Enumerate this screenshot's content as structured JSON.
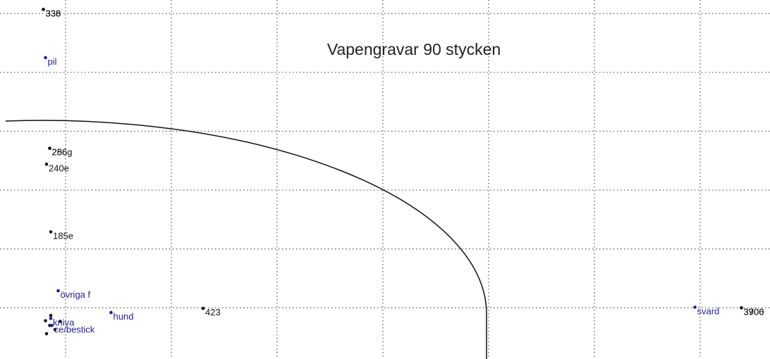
{
  "chart_data": {
    "type": "scatter",
    "title": "Vapengravar 90 stycken",
    "xlim": [
      -0.62,
      6.66
    ],
    "ylim": [
      -0.87,
      5.23
    ],
    "xticks": [
      0,
      1,
      2,
      3,
      4,
      5,
      6
    ],
    "yticks": [
      0,
      1,
      2,
      3,
      4,
      5
    ],
    "grid": true,
    "series": [
      {
        "color": "#111111",
        "x": [
          -0.21,
          -0.21,
          -0.15,
          -0.15,
          -0.18,
          -0.14,
          1.3,
          6.39,
          6.39,
          -0.19,
          -0.15,
          -0.1,
          -0.18,
          -0.05,
          -0.14
        ],
        "y": [
          5.07,
          5.07,
          2.71,
          2.71,
          2.44,
          1.29,
          -0.01,
          0,
          0,
          -0.22,
          -0.3,
          -0.37,
          -0.44,
          -0.23,
          -0.13
        ],
        "labels": [
          "338",
          "336",
          "286g",
          "256",
          "240e",
          "185e",
          "423",
          "3906",
          "3700",
          null,
          null,
          null,
          null,
          null,
          null
        ]
      },
      {
        "color": "#1f1f99",
        "x": [
          -0.19,
          -0.07,
          0.43,
          -0.14,
          -0.13,
          5.95
        ],
        "y": [
          4.25,
          0.29,
          -0.08,
          -0.18,
          -0.3,
          0.01
        ],
        "labels": [
          "pil",
          "övriga f",
          "hund",
          "kniva",
          "ce/bestick",
          "svard"
        ]
      }
    ]
  }
}
